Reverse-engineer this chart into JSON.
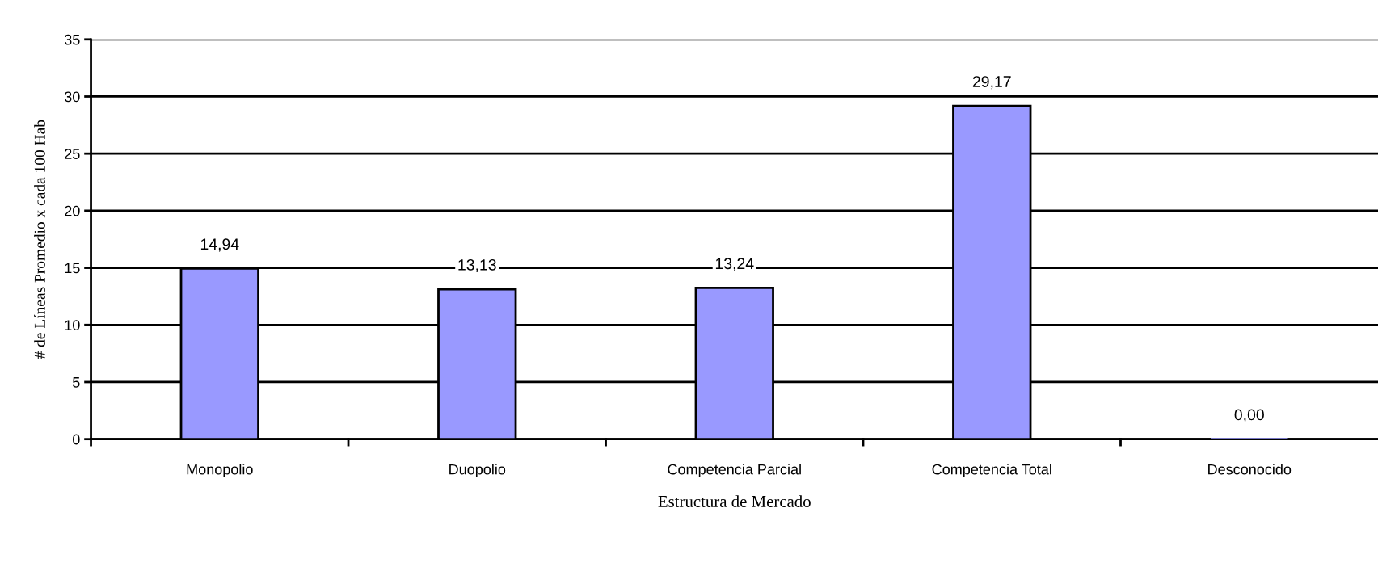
{
  "chart_data": {
    "type": "bar",
    "xlabel": "Estructura de Mercado",
    "ylabel": "# de Líneas Promedio x cada 100 Hab",
    "categories": [
      "Monopolio",
      "Duopolio",
      "Competencia Parcial",
      "Competencia Total",
      "Desconocido"
    ],
    "values": [
      14.94,
      13.13,
      13.24,
      29.17,
      0.0
    ],
    "value_labels": [
      "14,94",
      "13,13",
      "13,24",
      "29,17",
      "0,00"
    ],
    "color": "#9999ff",
    "ylim": [
      0,
      35
    ],
    "yticks": [
      0,
      5,
      10,
      15,
      20,
      25,
      30,
      35
    ],
    "grid": "y"
  }
}
